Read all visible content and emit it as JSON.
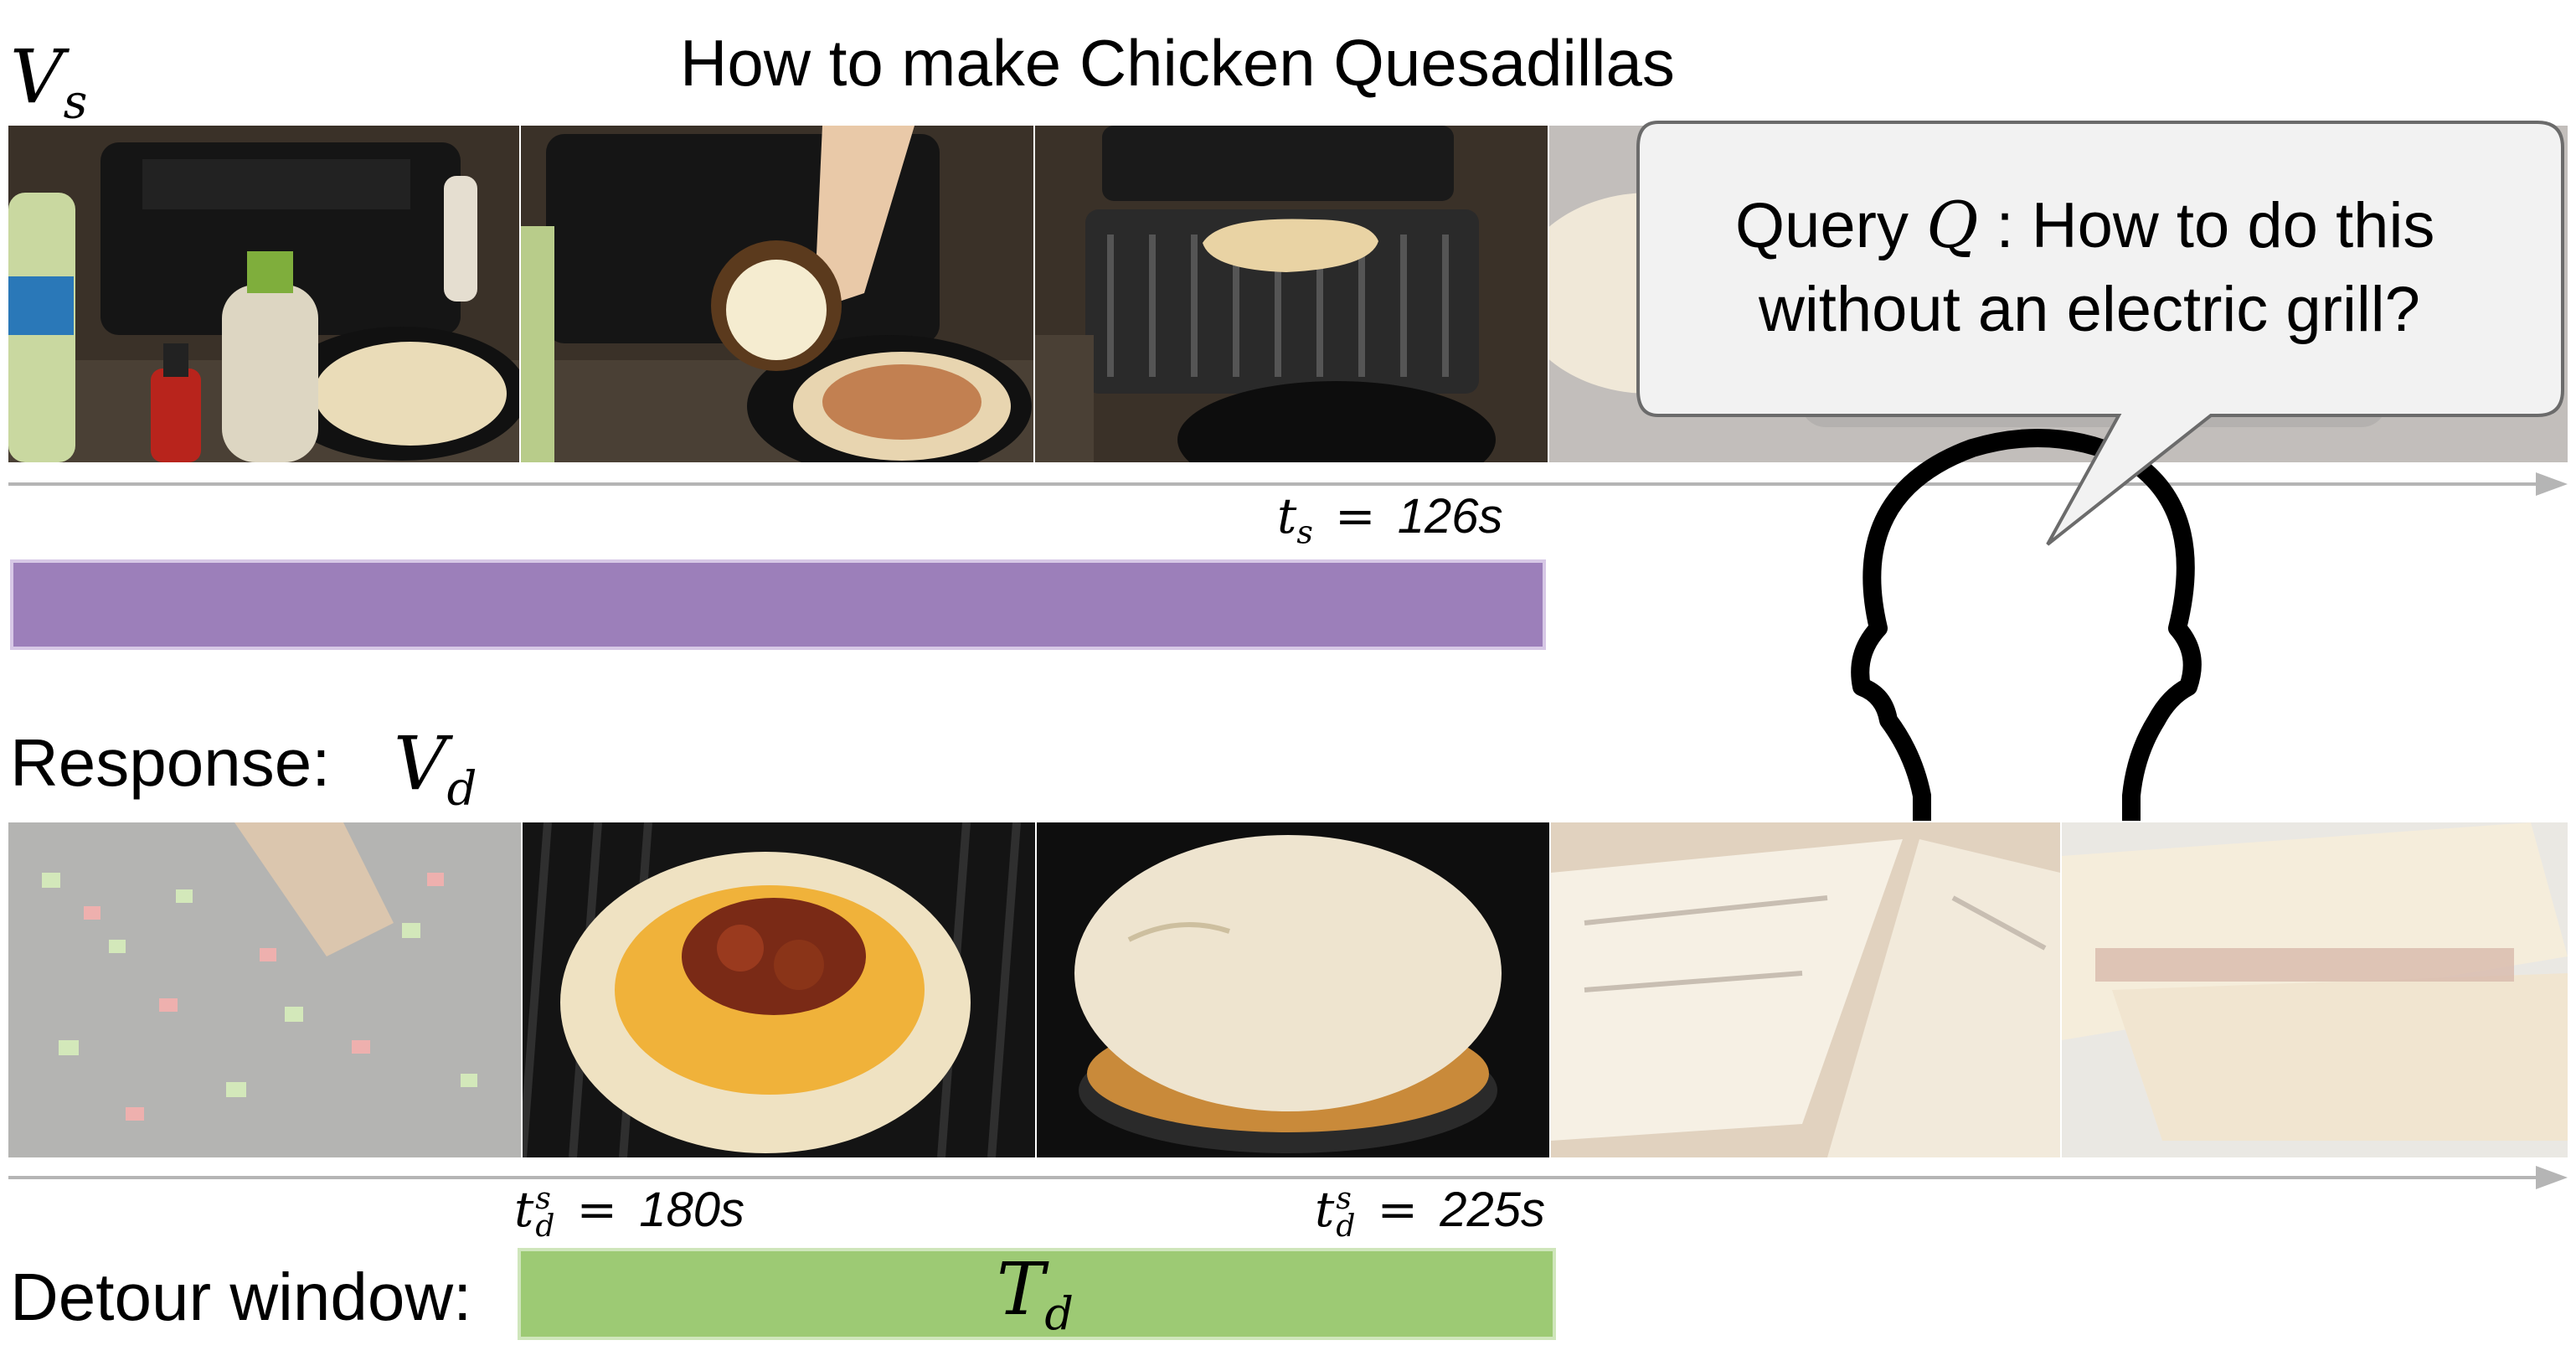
{
  "title": "How to make Chicken Quesadillas",
  "source_video": {
    "label_main": "V",
    "label_sub": "s",
    "frames": [
      {
        "name": "ingredients-frame",
        "faded": false
      },
      {
        "name": "cheese-pour-frame",
        "faded": false
      },
      {
        "name": "grill-quesadilla-frame",
        "faded": false
      },
      {
        "name": "faded-future-frame",
        "faded": true
      }
    ],
    "time_marker": {
      "var": "t",
      "sub": "s",
      "eq": "=",
      "value": "126s"
    }
  },
  "query": {
    "prefix": "Query",
    "symbol": "Q",
    "line1_rest": ": How to do this",
    "line2": "without an electric grill?"
  },
  "response": {
    "label": "Response:",
    "symbol_main": "V",
    "symbol_sub": "d",
    "frames": [
      {
        "name": "chopped-peppers-frame",
        "faded": true
      },
      {
        "name": "tortilla-toppings-frame",
        "faded": false
      },
      {
        "name": "folded-tortilla-frame",
        "faded": false
      },
      {
        "name": "sliced-quesadilla-frame",
        "faded": true
      },
      {
        "name": "plated-quesadilla-frame",
        "faded": true
      }
    ],
    "start_marker": {
      "var": "t",
      "sub": "d",
      "sup": "s",
      "eq": "=",
      "value": "180s"
    },
    "end_marker": {
      "var": "t",
      "sub": "d",
      "sup": "s",
      "eq": "=",
      "value": "225s"
    }
  },
  "detour": {
    "label": "Detour window:",
    "symbol_main": "T",
    "symbol_sub": "d"
  },
  "colors": {
    "watched_bar": "#9c7fba",
    "watched_bar_border": "#d7c8e6",
    "detour_bar": "#9dca74",
    "detour_bar_border": "#cfe6bb",
    "timeline": "#b5b5b5",
    "bubble_fill": "#f2f2f2",
    "bubble_stroke": "#6b6b6b"
  }
}
